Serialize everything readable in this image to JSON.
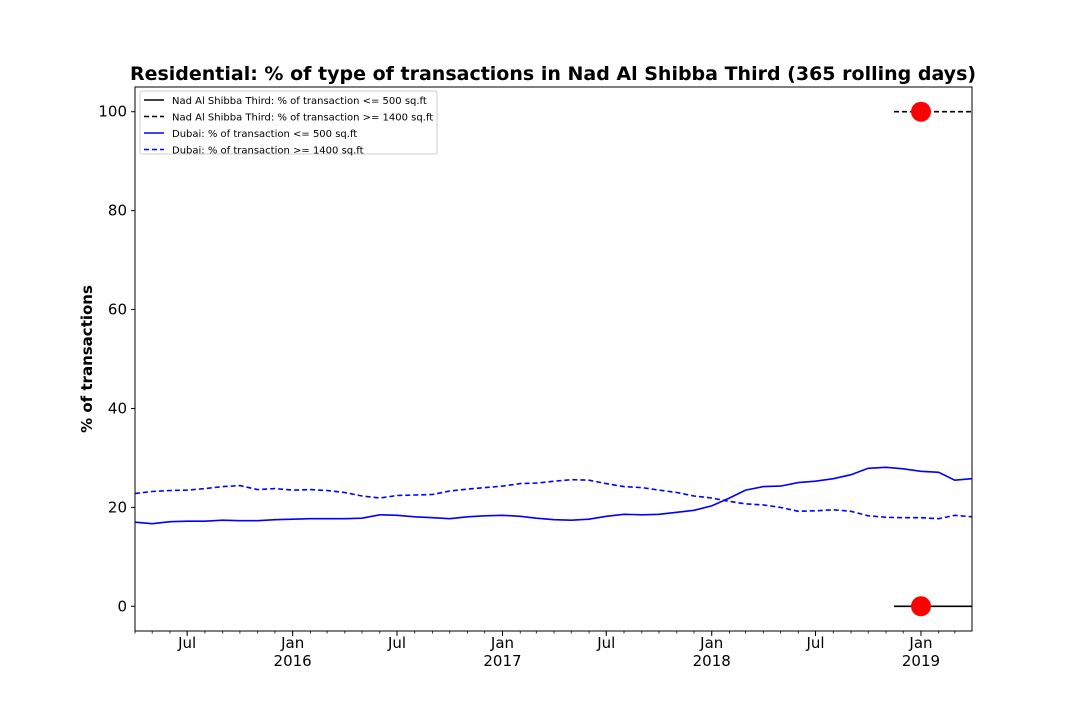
{
  "chart_data": {
    "type": "line",
    "title": "Residential: % of type of transactions in Nad Al Shibba Third (365 rolling days)",
    "xlabel": "",
    "ylabel": "% of transactions",
    "ylim": [
      -5,
      105
    ],
    "xlim": [
      "2015-04-01",
      "2019-03-31"
    ],
    "y_ticks": [
      0,
      20,
      40,
      60,
      80,
      100
    ],
    "x_ticks": [
      {
        "date": "2015-07-01",
        "label": "Jul",
        "year": ""
      },
      {
        "date": "2016-01-01",
        "label": "Jan",
        "year": "2016"
      },
      {
        "date": "2016-07-01",
        "label": "Jul",
        "year": ""
      },
      {
        "date": "2017-01-01",
        "label": "Jan",
        "year": "2017"
      },
      {
        "date": "2017-07-01",
        "label": "Jul",
        "year": ""
      },
      {
        "date": "2018-01-01",
        "label": "Jan",
        "year": "2018"
      },
      {
        "date": "2018-07-01",
        "label": "Jul",
        "year": ""
      },
      {
        "date": "2019-01-01",
        "label": "Jan",
        "year": "2019"
      }
    ],
    "grid": false,
    "legend_position": "top-left",
    "series": [
      {
        "name": "Nad Al Shibba Third: % of transaction <= 500 sq.ft",
        "color": "#000000",
        "style": "solid",
        "x": [
          "2018-11-15",
          "2019-03-31"
        ],
        "y": [
          0,
          0
        ]
      },
      {
        "name": "Nad Al Shibba Third: % of transaction >= 1400 sq.ft",
        "color": "#000000",
        "style": "dashed",
        "x": [
          "2018-11-15",
          "2019-03-31"
        ],
        "y": [
          100,
          100
        ]
      },
      {
        "name": "Dubai: % of transaction <= 500 sq.ft",
        "color": "#0000ff",
        "style": "solid",
        "x": [
          "2015-04-01",
          "2015-05-01",
          "2015-06-01",
          "2015-07-01",
          "2015-08-01",
          "2015-09-01",
          "2015-10-01",
          "2015-11-01",
          "2015-12-01",
          "2016-01-01",
          "2016-02-01",
          "2016-03-01",
          "2016-04-01",
          "2016-05-01",
          "2016-06-01",
          "2016-07-01",
          "2016-08-01",
          "2016-09-01",
          "2016-10-01",
          "2016-11-01",
          "2016-12-01",
          "2017-01-01",
          "2017-02-01",
          "2017-03-01",
          "2017-04-01",
          "2017-05-01",
          "2017-06-01",
          "2017-07-01",
          "2017-08-01",
          "2017-09-01",
          "2017-10-01",
          "2017-11-01",
          "2017-12-01",
          "2018-01-01",
          "2018-02-01",
          "2018-03-01",
          "2018-04-01",
          "2018-05-01",
          "2018-06-01",
          "2018-07-01",
          "2018-08-01",
          "2018-09-01",
          "2018-10-01",
          "2018-11-01",
          "2018-12-01",
          "2019-01-01",
          "2019-02-01",
          "2019-03-01",
          "2019-03-31"
        ],
        "y": [
          17.0,
          16.7,
          17.1,
          17.2,
          17.2,
          17.4,
          17.3,
          17.3,
          17.5,
          17.6,
          17.7,
          17.7,
          17.7,
          17.8,
          18.5,
          18.4,
          18.1,
          17.9,
          17.7,
          18.1,
          18.3,
          18.4,
          18.2,
          17.8,
          17.5,
          17.4,
          17.6,
          18.2,
          18.6,
          18.5,
          18.6,
          19.0,
          19.4,
          20.3,
          21.9,
          23.5,
          24.2,
          24.3,
          25.0,
          25.3,
          25.8,
          26.6,
          27.9,
          28.1,
          27.8,
          27.3,
          27.1,
          25.5,
          25.8
        ]
      },
      {
        "name": "Dubai: % of transaction >= 1400 sq.ft",
        "color": "#0000ff",
        "style": "dashed",
        "x": [
          "2015-04-01",
          "2015-05-01",
          "2015-06-01",
          "2015-07-01",
          "2015-08-01",
          "2015-09-01",
          "2015-10-01",
          "2015-11-01",
          "2015-12-01",
          "2016-01-01",
          "2016-02-01",
          "2016-03-01",
          "2016-04-01",
          "2016-05-01",
          "2016-06-01",
          "2016-07-01",
          "2016-08-01",
          "2016-09-01",
          "2016-10-01",
          "2016-11-01",
          "2016-12-01",
          "2017-01-01",
          "2017-02-01",
          "2017-03-01",
          "2017-04-01",
          "2017-05-01",
          "2017-06-01",
          "2017-07-01",
          "2017-08-01",
          "2017-09-01",
          "2017-10-01",
          "2017-11-01",
          "2017-12-01",
          "2018-01-01",
          "2018-02-01",
          "2018-03-01",
          "2018-04-01",
          "2018-05-01",
          "2018-06-01",
          "2018-07-01",
          "2018-08-01",
          "2018-09-01",
          "2018-10-01",
          "2018-11-01",
          "2018-12-01",
          "2019-01-01",
          "2019-02-01",
          "2019-03-01",
          "2019-03-31"
        ],
        "y": [
          22.8,
          23.2,
          23.4,
          23.5,
          23.8,
          24.2,
          24.4,
          23.6,
          23.8,
          23.5,
          23.6,
          23.4,
          23.0,
          22.3,
          21.9,
          22.4,
          22.5,
          22.6,
          23.3,
          23.7,
          24.0,
          24.3,
          24.8,
          24.9,
          25.3,
          25.6,
          25.5,
          24.8,
          24.2,
          24.0,
          23.5,
          23.0,
          22.3,
          21.9,
          21.2,
          20.7,
          20.5,
          20.0,
          19.2,
          19.3,
          19.5,
          19.2,
          18.3,
          18.0,
          17.9,
          17.9,
          17.7,
          18.4,
          18.1
        ]
      },
      {
        "name": "",
        "type": "scatter",
        "color": "#ff0000",
        "x": [
          "2019-01-01",
          "2019-01-01"
        ],
        "y": [
          0,
          100
        ]
      }
    ]
  }
}
